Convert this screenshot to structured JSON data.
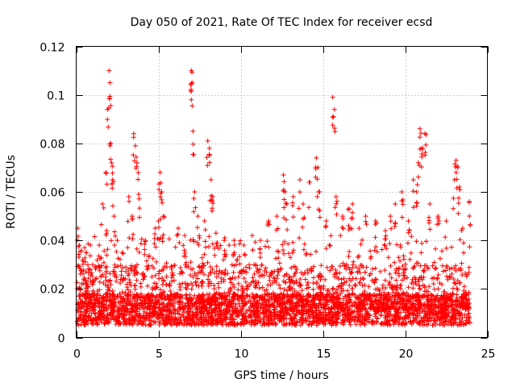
{
  "chart_data": {
    "type": "scatter",
    "title": "Day 050 of 2021, Rate Of TEC Index for receiver ecsd",
    "xlabel": "GPS time / hours",
    "ylabel": "ROTI / TECUs",
    "xlim": [
      0,
      25
    ],
    "ylim": [
      0,
      0.12
    ],
    "x_ticks": [
      0,
      5,
      10,
      15,
      20,
      25
    ],
    "y_ticks": [
      0,
      0.02,
      0.04,
      0.06,
      0.08,
      0.1,
      0.12
    ],
    "x_tick_labels": [
      "0",
      "5",
      "10",
      "15",
      "20",
      "25"
    ],
    "y_tick_labels": [
      "0",
      "0.02",
      "0.04",
      "0.06",
      "0.08",
      "0.1",
      "0.12"
    ],
    "grid": true,
    "marker": "plus",
    "color": "#ff0000",
    "series": [
      {
        "name": "ROTI",
        "x": [
          0.1,
          0.2,
          0.4,
          0.6,
          1.0,
          1.4,
          1.6,
          1.8,
          1.85,
          1.9,
          2.0,
          2.05,
          2.1,
          2.15,
          2.2,
          2.3,
          2.5,
          2.8,
          3.2,
          3.4,
          3.5,
          3.6,
          3.7,
          3.8,
          4.2,
          4.8,
          5.0,
          5.1,
          5.2,
          5.3,
          6.2,
          6.6,
          7.0,
          7.05,
          7.1,
          7.2,
          7.4,
          7.8,
          8.0,
          8.1,
          8.2,
          8.3,
          8.5,
          9.0,
          9.6,
          10.2,
          10.7,
          11.2,
          11.7,
          12.2,
          12.6,
          12.7,
          12.8,
          13.2,
          13.6,
          13.8,
          14.2,
          14.6,
          14.7,
          14.8,
          15.2,
          15.6,
          15.7,
          15.8,
          16.2,
          16.6,
          16.8,
          17.2,
          17.6,
          18.2,
          18.8,
          19.1,
          19.4,
          19.8,
          20.2,
          20.5,
          20.7,
          20.8,
          20.9,
          21.0,
          21.2,
          21.5,
          22.0,
          22.5,
          23.0,
          23.1,
          23.2,
          23.3,
          23.5,
          23.9
        ],
        "y": [
          0.045,
          0.038,
          0.032,
          0.035,
          0.03,
          0.038,
          0.055,
          0.068,
          0.044,
          0.094,
          0.11,
          0.105,
          0.08,
          0.072,
          0.065,
          0.05,
          0.04,
          0.035,
          0.058,
          0.05,
          0.084,
          0.079,
          0.072,
          0.059,
          0.04,
          0.045,
          0.048,
          0.068,
          0.06,
          0.05,
          0.045,
          0.042,
          0.11,
          0.105,
          0.085,
          0.06,
          0.05,
          0.048,
          0.081,
          0.078,
          0.065,
          0.058,
          0.043,
          0.04,
          0.04,
          0.038,
          0.042,
          0.04,
          0.048,
          0.05,
          0.067,
          0.06,
          0.055,
          0.058,
          0.065,
          0.055,
          0.064,
          0.074,
          0.07,
          0.06,
          0.048,
          0.099,
          0.094,
          0.058,
          0.05,
          0.053,
          0.055,
          0.045,
          0.05,
          0.048,
          0.044,
          0.05,
          0.055,
          0.06,
          0.048,
          0.065,
          0.06,
          0.072,
          0.086,
          0.078,
          0.084,
          0.055,
          0.05,
          0.048,
          0.065,
          0.073,
          0.07,
          0.062,
          0.045,
          0.056
        ]
      }
    ],
    "note": "Dense baseline scatter ~0.005-0.02 TECU/s across full day with sparse spikes listed above"
  }
}
